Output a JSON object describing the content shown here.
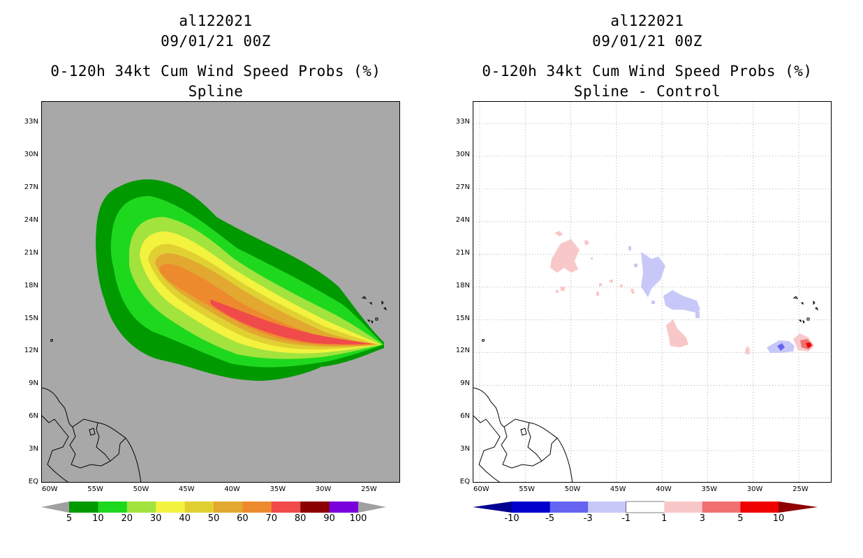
{
  "chart_data": [
    {
      "type": "heatmap",
      "storm_id": "al122021",
      "date": "09/01/21 00Z",
      "title": "0-120h 34kt Cum Wind Speed Probs (%)",
      "subtitle": "Spline",
      "units": "%",
      "x_ticks": [
        "60W",
        "55W",
        "50W",
        "45W",
        "40W",
        "35W",
        "30W",
        "25W"
      ],
      "y_ticks": [
        "EQ",
        "3N",
        "6N",
        "9N",
        "12N",
        "15N",
        "18N",
        "21N",
        "24N",
        "27N",
        "30N",
        "33N"
      ],
      "grid": false,
      "background_color": "#a8a8a8",
      "colorbar": {
        "labels": [
          "5",
          "10",
          "20",
          "30",
          "40",
          "50",
          "60",
          "70",
          "80",
          "90",
          "100"
        ],
        "colors": [
          "#009900",
          "#1ed81e",
          "#a3e33e",
          "#f3f33f",
          "#e1d032",
          "#e2a830",
          "#ee8a2e",
          "#f04a4a",
          "#8c0000",
          "#7a00dd"
        ],
        "end_colors": [
          "#a0a0a0",
          "#a0a0a0"
        ]
      }
    },
    {
      "type": "heatmap",
      "storm_id": "al122021",
      "date": "09/01/21 00Z",
      "title": "0-120h 34kt Cum Wind Speed Probs (%)",
      "subtitle": "Spline - Control",
      "units": "%",
      "x_ticks": [
        "60W",
        "55W",
        "50W",
        "45W",
        "40W",
        "35W",
        "30W",
        "25W"
      ],
      "y_ticks": [
        "EQ",
        "3N",
        "6N",
        "9N",
        "12N",
        "15N",
        "18N",
        "21N",
        "24N",
        "27N",
        "30N",
        "33N"
      ],
      "grid": true,
      "background_color": "#ffffff",
      "colorbar": {
        "labels": [
          "-10",
          "-5",
          "-3",
          "-1",
          "1",
          "3",
          "5",
          "10"
        ],
        "colors": [
          "#0000cc",
          "#6464f0",
          "#c8c8f8",
          "#ffffff",
          "#f8c8c8",
          "#f07070",
          "#ee0000"
        ],
        "end_colors": [
          "#000090",
          "#900000"
        ]
      }
    }
  ]
}
